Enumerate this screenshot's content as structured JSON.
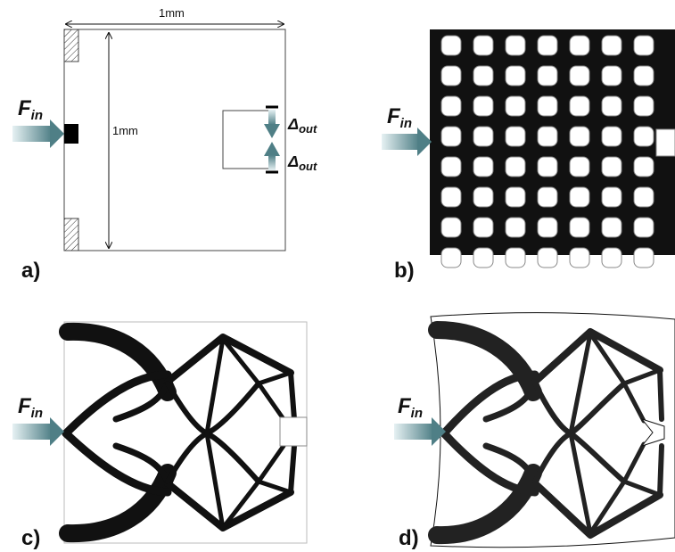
{
  "panels": {
    "a": {
      "label": "a)",
      "force": {
        "symbol": "F",
        "subscript": "in"
      },
      "width_dim": "1mm",
      "height_dim": "1mm",
      "output": {
        "symbol": "Δ",
        "subscript": "out"
      }
    },
    "b": {
      "label": "b)",
      "force": {
        "symbol": "F",
        "subscript": "in"
      }
    },
    "c": {
      "label": "c)",
      "force": {
        "symbol": "F",
        "subscript": "in"
      }
    },
    "d": {
      "label": "d)",
      "force": {
        "symbol": "F",
        "subscript": "in"
      }
    }
  },
  "colors": {
    "material": "#111111",
    "arrow_dark": "#4f7f86",
    "arrow_light": "#e6f1f3"
  }
}
